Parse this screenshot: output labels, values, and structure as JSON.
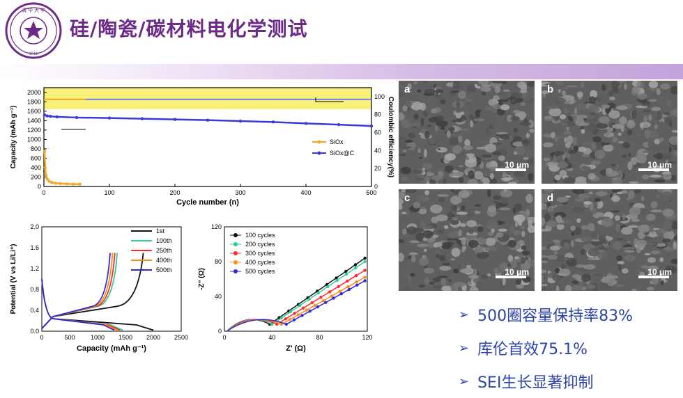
{
  "slide": {
    "title": "硅/陶瓷/碳材料电化学测试",
    "logo_text": "清华大学",
    "logo_year": "1911"
  },
  "colors": {
    "title": "#6a2a86",
    "bullet": "#2c43a8",
    "band": "#c3a3db"
  },
  "cycling_chart": {
    "type": "scatter",
    "xlabel": "Cycle number (n)",
    "ylabel_left": "Capacity (mAh g⁻¹)",
    "ylabel_right": "Coulombic efficiency(%)",
    "x_ticks": [
      "0",
      "100",
      "200",
      "300",
      "400",
      "500"
    ],
    "y_ticks": [
      "0",
      "200",
      "400",
      "600",
      "800",
      "1000",
      "1200",
      "1400",
      "1600",
      "1800",
      "2000"
    ],
    "y2_ticks": [
      "0",
      "20",
      "40",
      "60",
      "80",
      "100"
    ],
    "legend": [
      "SiOx",
      "SiOx@C"
    ],
    "highlight_band": [
      1640,
      2100
    ],
    "chart_data": {
      "type": "scatter",
      "xlim": [
        0,
        500
      ],
      "ylim": [
        0,
        2100
      ],
      "series": [
        {
          "name": "SiOx",
          "x": [
            1,
            2,
            3,
            5,
            8,
            12,
            18,
            25,
            35,
            45,
            55
          ],
          "y": [
            750,
            400,
            240,
            160,
            110,
            85,
            70,
            62,
            55,
            50,
            48
          ],
          "color": "#f5a623"
        },
        {
          "name": "SiOx@C",
          "x": [
            1,
            5,
            10,
            20,
            50,
            100,
            150,
            200,
            250,
            300,
            350,
            400,
            450,
            500
          ],
          "y": [
            1520,
            1500,
            1490,
            1480,
            1465,
            1455,
            1440,
            1425,
            1410,
            1390,
            1370,
            1340,
            1315,
            1285
          ],
          "color": "#3a3ad8"
        }
      ]
    }
  },
  "voltage_chart": {
    "xlabel": "Capacity (mAh g⁻¹)",
    "ylabel": "Potential (V vs Li/Li⁺)",
    "x_ticks": [
      "0",
      "500",
      "1000",
      "1500",
      "2000",
      "2500"
    ],
    "y_ticks": [
      "0.0",
      "0.4",
      "0.8",
      "1.2",
      "1.6",
      "2.0"
    ],
    "legend": [
      {
        "label": "1st",
        "color": "#111111"
      },
      {
        "label": "100th",
        "color": "#2ecc9a"
      },
      {
        "label": "250th",
        "color": "#ff2a2a"
      },
      {
        "label": "400th",
        "color": "#ff8c1a"
      },
      {
        "label": "500th",
        "color": "#2b2bd8"
      }
    ]
  },
  "eis_chart": {
    "xlabel": "Z' (Ω)",
    "ylabel": "-Z'' (Ω)",
    "x_ticks": [
      "0",
      "40",
      "80",
      "120"
    ],
    "y_ticks": [
      "0",
      "40",
      "80",
      "120"
    ],
    "legend": [
      {
        "label": "100 cycles",
        "color": "#111111"
      },
      {
        "label": "200 cycles",
        "color": "#2ecc9a"
      },
      {
        "label": "300 cycles",
        "color": "#ff2a2a"
      },
      {
        "label": "400 cycles",
        "color": "#ff8c1a"
      },
      {
        "label": "500 cycles",
        "color": "#2b2bd8"
      }
    ]
  },
  "sem": [
    {
      "label": "a",
      "scale": "10 μm"
    },
    {
      "label": "b",
      "scale": "10 μm"
    },
    {
      "label": "c",
      "scale": "10 μm"
    },
    {
      "label": "d",
      "scale": "10 μm"
    }
  ],
  "bullets": [
    "500圈容量保持率83%",
    "库伦首效75.1%",
    "SEI生长显著抑制"
  ]
}
